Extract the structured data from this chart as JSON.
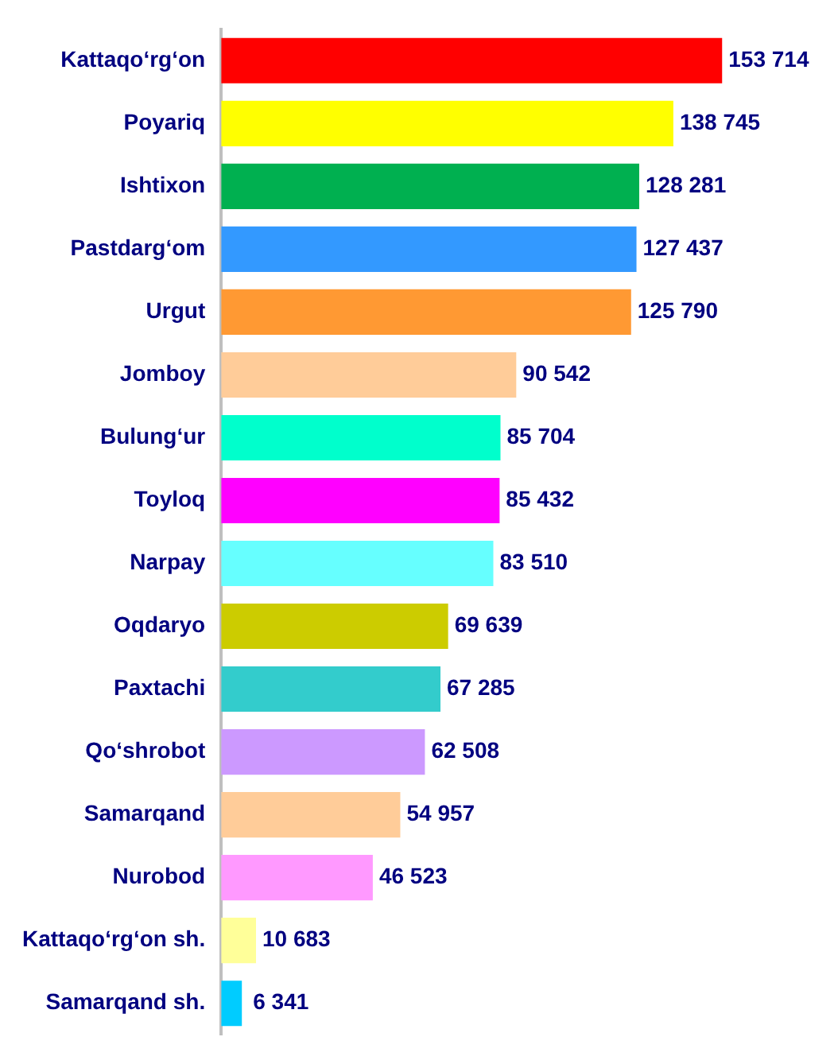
{
  "chart_data": {
    "type": "bar",
    "orientation": "horizontal",
    "categories": [
      "Kattaqo‘rg‘on",
      "Poyariq",
      "Ishtixon",
      "Pastdarg‘om",
      "Urgut",
      "Jomboy",
      "Bulung‘ur",
      "Toyloq",
      "Narpay",
      "Oqdaryo",
      "Paxtachi",
      "Qo‘shrobot",
      "Samarqand",
      "Nurobod",
      "Kattaqo‘rg‘on sh.",
      "Samarqand sh."
    ],
    "values": [
      153714,
      138745,
      128281,
      127437,
      125790,
      90542,
      85704,
      85432,
      83510,
      69639,
      67285,
      62508,
      54957,
      46523,
      10683,
      6341
    ],
    "colors": [
      "#ff0000",
      "#ffff00",
      "#00b050",
      "#3399ff",
      "#ff9933",
      "#ffcc99",
      "#00ffcc",
      "#ff00ff",
      "#66ffff",
      "#cccc00",
      "#33cccc",
      "#cc99ff",
      "#ffcc99",
      "#ff99ff",
      "#ffff99",
      "#00ccff"
    ],
    "value_labels": [
      "153 714",
      "138 745",
      "128 281",
      "127 437",
      "125 790",
      "90 542",
      "85 704",
      "85 432",
      "83 510",
      "69 639",
      "67 285",
      "62 508",
      "54 957",
      "46 523",
      "10 683",
      "6 341"
    ],
    "legend": false
  }
}
